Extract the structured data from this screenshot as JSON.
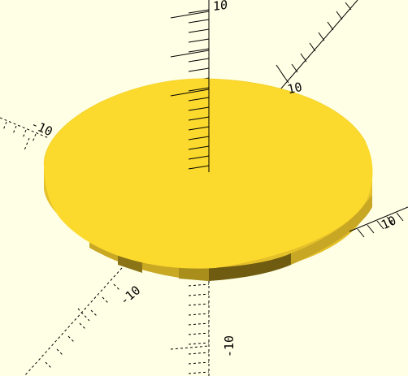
{
  "app": "OpenSCAD preview viewport",
  "scene": {
    "object": "cylinder",
    "colors": {
      "background": "#ffffe5",
      "top_face": "#fbd92d",
      "side_light": "#e4c02a",
      "side_dark": "#b89b1e",
      "side_darkest": "#7f6a12",
      "axis": "#000000"
    }
  },
  "axis_labels": {
    "z_positive": "10",
    "y_positive": "10",
    "x_negative": "-10",
    "x_positive": "10",
    "y_negative": "-10",
    "z_negative": "-10"
  }
}
